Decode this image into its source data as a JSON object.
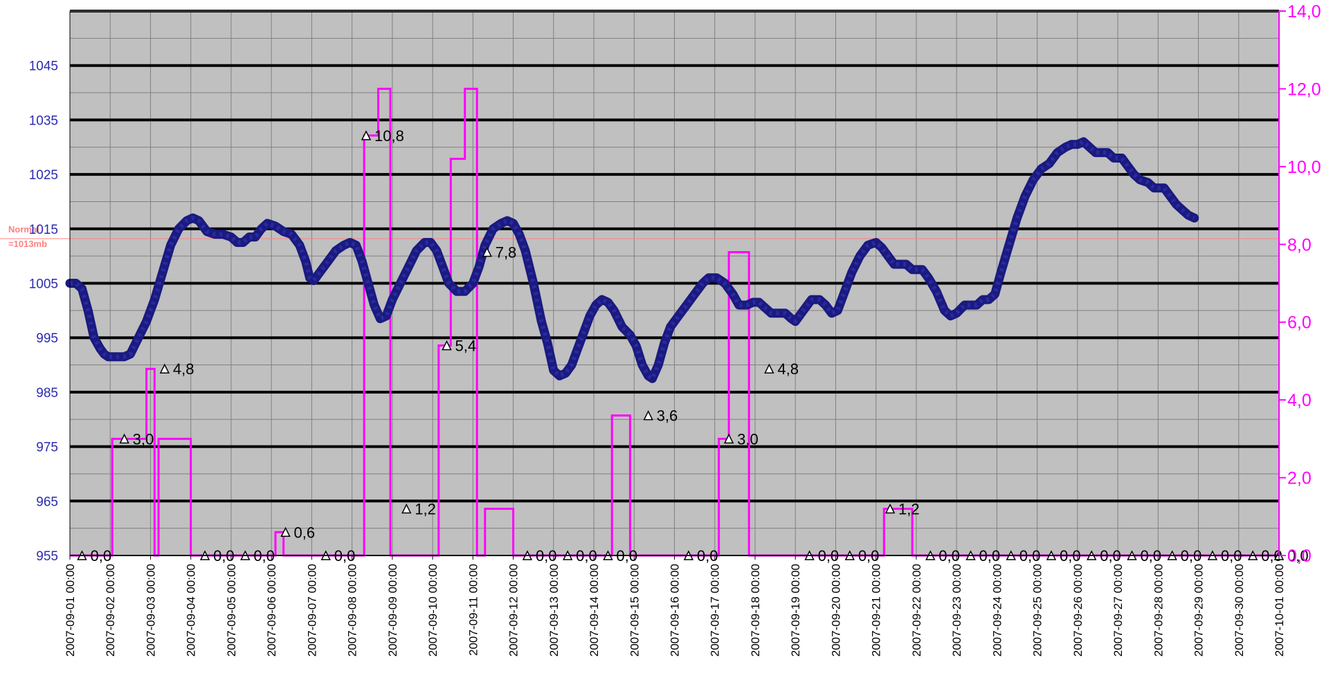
{
  "chart_data": {
    "type": "line",
    "x_start": "2007-09-01",
    "x_categories": [
      "2007-09-01 00:00",
      "2007-09-02 00:00",
      "2007-09-03 00:00",
      "2007-09-04 00:00",
      "2007-09-05 00:00",
      "2007-09-06 00:00",
      "2007-09-07 00:00",
      "2007-09-08 00:00",
      "2007-09-09 00:00",
      "2007-09-10 00:00",
      "2007-09-11 00:00",
      "2007-09-12 00:00",
      "2007-09-13 00:00",
      "2007-09-14 00:00",
      "2007-09-15 00:00",
      "2007-09-16 00:00",
      "2007-09-17 00:00",
      "2007-09-18 00:00",
      "2007-09-19 00:00",
      "2007-09-20 00:00",
      "2007-09-21 00:00",
      "2007-09-22 00:00",
      "2007-09-23 00:00",
      "2007-09-24 00:00",
      "2007-09-25 00:00",
      "2007-09-26 00:00",
      "2007-09-27 00:00",
      "2007-09-28 00:00",
      "2007-09-29 00:00",
      "2007-09-30 00:00",
      "2007-10-01 00:00"
    ],
    "y_left": {
      "min": 955,
      "max": 1055,
      "ticks": [
        "955",
        "965",
        "975",
        "985",
        "995",
        "1005",
        "1015",
        "1025",
        "1035",
        "1045"
      ]
    },
    "y_right": {
      "min": 0,
      "max": 14,
      "ticks": [
        "0,0",
        "2,0",
        "4,0",
        "6,0",
        "8,0",
        "10,0",
        "12,0",
        "14,0"
      ]
    },
    "normal_line": {
      "value": 1013.2,
      "label_line1": "Normal",
      "label_line2": "=1013mb",
      "color": "#ff8080"
    },
    "colors": {
      "pressure": "#1a1a80",
      "rain": "#ff00ff",
      "plot_bg": "#c0c0c0",
      "grid_major": "#000000",
      "grid_minor": "#808080",
      "left_axis_text": "#2b2bb0"
    },
    "grid": true,
    "series": [
      {
        "axis": "left",
        "points": [
          [
            0.0,
            1005
          ],
          [
            0.15,
            1005
          ],
          [
            0.3,
            1004
          ],
          [
            0.45,
            1000
          ],
          [
            0.6,
            995
          ],
          [
            0.75,
            993
          ],
          [
            0.85,
            992
          ],
          [
            0.95,
            991.5
          ],
          [
            1.15,
            991.5
          ],
          [
            1.35,
            991.5
          ],
          [
            1.5,
            992
          ],
          [
            1.7,
            995
          ],
          [
            1.9,
            998
          ],
          [
            2.1,
            1002
          ],
          [
            2.3,
            1007
          ],
          [
            2.5,
            1012
          ],
          [
            2.7,
            1015
          ],
          [
            2.9,
            1016.5
          ],
          [
            3.05,
            1017
          ],
          [
            3.2,
            1016.5
          ],
          [
            3.4,
            1014.5
          ],
          [
            3.6,
            1014
          ],
          [
            3.8,
            1014
          ],
          [
            4.0,
            1013.5
          ],
          [
            4.15,
            1012.5
          ],
          [
            4.3,
            1012.5
          ],
          [
            4.45,
            1013.5
          ],
          [
            4.6,
            1013.5
          ],
          [
            4.75,
            1015
          ],
          [
            4.9,
            1016
          ],
          [
            5.1,
            1015.5
          ],
          [
            5.3,
            1014.5
          ],
          [
            5.5,
            1014
          ],
          [
            5.7,
            1012
          ],
          [
            5.85,
            1009
          ],
          [
            5.95,
            1006
          ],
          [
            6.05,
            1005.5
          ],
          [
            6.2,
            1007
          ],
          [
            6.4,
            1009
          ],
          [
            6.6,
            1011
          ],
          [
            6.8,
            1012
          ],
          [
            6.95,
            1012.5
          ],
          [
            7.1,
            1012
          ],
          [
            7.25,
            1009
          ],
          [
            7.4,
            1005
          ],
          [
            7.55,
            1001
          ],
          [
            7.7,
            998.5
          ],
          [
            7.85,
            999
          ],
          [
            8.0,
            1002
          ],
          [
            8.2,
            1005
          ],
          [
            8.4,
            1008
          ],
          [
            8.6,
            1011
          ],
          [
            8.8,
            1012.5
          ],
          [
            8.95,
            1012.5
          ],
          [
            9.1,
            1011
          ],
          [
            9.25,
            1008
          ],
          [
            9.4,
            1005
          ],
          [
            9.6,
            1003.5
          ],
          [
            9.8,
            1003.5
          ],
          [
            10.0,
            1005
          ],
          [
            10.15,
            1008
          ],
          [
            10.3,
            1012
          ],
          [
            10.5,
            1015
          ],
          [
            10.7,
            1016
          ],
          [
            10.85,
            1016.5
          ],
          [
            11.0,
            1016
          ],
          [
            11.15,
            1014
          ],
          [
            11.3,
            1011
          ],
          [
            11.5,
            1005
          ],
          [
            11.7,
            998
          ],
          [
            11.85,
            994
          ],
          [
            12.0,
            989
          ],
          [
            12.15,
            988
          ],
          [
            12.3,
            988.5
          ],
          [
            12.45,
            990
          ],
          [
            12.6,
            993
          ],
          [
            12.75,
            996
          ],
          [
            12.9,
            999
          ],
          [
            13.05,
            1001
          ],
          [
            13.2,
            1002
          ],
          [
            13.35,
            1001.5
          ],
          [
            13.5,
            1000
          ],
          [
            13.7,
            997
          ],
          [
            13.9,
            995.5
          ],
          [
            14.05,
            993.5
          ],
          [
            14.2,
            990
          ],
          [
            14.35,
            988
          ],
          [
            14.45,
            987.5
          ],
          [
            14.6,
            990
          ],
          [
            14.75,
            994
          ],
          [
            14.9,
            997
          ],
          [
            15.1,
            999
          ],
          [
            15.3,
            1001
          ],
          [
            15.5,
            1003
          ],
          [
            15.7,
            1005
          ],
          [
            15.85,
            1006
          ],
          [
            16.05,
            1006
          ],
          [
            16.25,
            1005
          ],
          [
            16.45,
            1003
          ],
          [
            16.6,
            1001
          ],
          [
            16.8,
            1001
          ],
          [
            16.95,
            1001.5
          ],
          [
            17.1,
            1001.5
          ],
          [
            17.25,
            1000.5
          ],
          [
            17.4,
            999.5
          ],
          [
            17.6,
            999.5
          ],
          [
            17.75,
            999.5
          ],
          [
            17.9,
            998.5
          ],
          [
            18.0,
            998
          ],
          [
            18.2,
            1000
          ],
          [
            18.4,
            1002
          ],
          [
            18.6,
            1002
          ],
          [
            18.75,
            1001
          ],
          [
            18.9,
            999.5
          ],
          [
            19.05,
            1000
          ],
          [
            19.2,
            1003
          ],
          [
            19.4,
            1007
          ],
          [
            19.6,
            1010
          ],
          [
            19.8,
            1012
          ],
          [
            20.0,
            1012.5
          ],
          [
            20.15,
            1011.5
          ],
          [
            20.3,
            1010
          ],
          [
            20.45,
            1008.5
          ],
          [
            20.75,
            1008.5
          ],
          [
            20.9,
            1007.5
          ],
          [
            21.15,
            1007.5
          ],
          [
            21.3,
            1006
          ],
          [
            21.5,
            1003.5
          ],
          [
            21.7,
            1000
          ],
          [
            21.85,
            999
          ],
          [
            22.0,
            999.5
          ],
          [
            22.2,
            1001
          ],
          [
            22.5,
            1001
          ],
          [
            22.65,
            1002
          ],
          [
            22.8,
            1002
          ],
          [
            22.95,
            1003
          ],
          [
            23.1,
            1007
          ],
          [
            23.3,
            1012
          ],
          [
            23.5,
            1017
          ],
          [
            23.7,
            1021
          ],
          [
            23.9,
            1024
          ],
          [
            24.1,
            1026
          ],
          [
            24.3,
            1027
          ],
          [
            24.5,
            1029
          ],
          [
            24.7,
            1030
          ],
          [
            24.85,
            1030.5
          ],
          [
            25.0,
            1030.5
          ],
          [
            25.15,
            1031
          ],
          [
            25.3,
            1030
          ],
          [
            25.45,
            1029
          ],
          [
            25.75,
            1029
          ],
          [
            25.9,
            1028
          ],
          [
            26.1,
            1028
          ],
          [
            26.25,
            1026.5
          ],
          [
            26.4,
            1025
          ],
          [
            26.55,
            1024
          ],
          [
            26.75,
            1023.5
          ],
          [
            26.9,
            1022.5
          ],
          [
            27.15,
            1022.5
          ],
          [
            27.3,
            1021
          ],
          [
            27.45,
            1019.5
          ],
          [
            27.6,
            1018.5
          ],
          [
            27.75,
            1017.5
          ],
          [
            27.9,
            1017
          ]
        ]
      },
      {
        "axis": "right",
        "points": [
          [
            0,
            0
          ],
          [
            1.05,
            0
          ],
          [
            1.05,
            3.0
          ],
          [
            1.9,
            3.0
          ],
          [
            1.9,
            4.8
          ],
          [
            2.1,
            4.8
          ],
          [
            2.1,
            0
          ],
          [
            2.2,
            0
          ],
          [
            2.2,
            3.0
          ],
          [
            3.0,
            3.0
          ],
          [
            3.0,
            0
          ],
          [
            5.1,
            0
          ],
          [
            5.1,
            0.6
          ],
          [
            5.3,
            0.6
          ],
          [
            5.3,
            0
          ],
          [
            7.3,
            0
          ],
          [
            7.3,
            10.8
          ],
          [
            7.65,
            10.8
          ],
          [
            7.65,
            12.0
          ],
          [
            7.95,
            12.0
          ],
          [
            7.95,
            0
          ],
          [
            9.15,
            0
          ],
          [
            9.15,
            5.4
          ],
          [
            9.45,
            5.4
          ],
          [
            9.45,
            10.2
          ],
          [
            9.8,
            10.2
          ],
          [
            9.8,
            12.0
          ],
          [
            10.1,
            12.0
          ],
          [
            10.1,
            0
          ],
          [
            10.3,
            0
          ],
          [
            10.3,
            1.2
          ],
          [
            11.0,
            1.2
          ],
          [
            11.0,
            0
          ],
          [
            13.45,
            0
          ],
          [
            13.45,
            3.6
          ],
          [
            13.9,
            3.6
          ],
          [
            13.9,
            0
          ],
          [
            16.1,
            0
          ],
          [
            16.1,
            3.0
          ],
          [
            16.35,
            3.0
          ],
          [
            16.35,
            7.8
          ],
          [
            16.85,
            7.8
          ],
          [
            16.85,
            0
          ],
          [
            20.2,
            0
          ],
          [
            20.2,
            1.2
          ],
          [
            20.9,
            1.2
          ],
          [
            20.9,
            0
          ],
          [
            30,
            0
          ]
        ]
      }
    ],
    "annotations": [
      {
        "x": 0.3,
        "y": 0.0,
        "text": "0,0"
      },
      {
        "x": 1.35,
        "y": 3.0,
        "text": "3,0"
      },
      {
        "x": 2.35,
        "y": 4.8,
        "text": "4,8"
      },
      {
        "x": 3.35,
        "y": 0.0,
        "text": "0,0"
      },
      {
        "x": 4.35,
        "y": 0.0,
        "text": "0,0"
      },
      {
        "x": 5.35,
        "y": 0.6,
        "text": "0,6"
      },
      {
        "x": 6.35,
        "y": 0.0,
        "text": "0,0"
      },
      {
        "x": 7.35,
        "y": 10.8,
        "text": "10,8"
      },
      {
        "x": 8.35,
        "y": 1.2,
        "text": "1,2"
      },
      {
        "x": 9.35,
        "y": 5.4,
        "text": "5,4"
      },
      {
        "x": 10.35,
        "y": 7.8,
        "text": "7,8"
      },
      {
        "x": 11.35,
        "y": 0.0,
        "text": "0,0"
      },
      {
        "x": 12.35,
        "y": 0.0,
        "text": "0,0"
      },
      {
        "x": 13.35,
        "y": 0.0,
        "text": "0,0"
      },
      {
        "x": 14.35,
        "y": 3.6,
        "text": "3,6"
      },
      {
        "x": 15.35,
        "y": 0.0,
        "text": "0,0"
      },
      {
        "x": 16.35,
        "y": 3.0,
        "text": "3,0"
      },
      {
        "x": 17.35,
        "y": 4.8,
        "text": "4,8"
      },
      {
        "x": 18.35,
        "y": 0.0,
        "text": "0,0"
      },
      {
        "x": 19.35,
        "y": 0.0,
        "text": "0,0"
      },
      {
        "x": 20.35,
        "y": 1.2,
        "text": "1,2"
      },
      {
        "x": 21.35,
        "y": 0.0,
        "text": "0,0"
      },
      {
        "x": 22.35,
        "y": 0.0,
        "text": "0,0"
      },
      {
        "x": 23.35,
        "y": 0.0,
        "text": "0,0"
      },
      {
        "x": 24.35,
        "y": 0.0,
        "text": "0,0"
      },
      {
        "x": 25.35,
        "y": 0.0,
        "text": "0,0"
      },
      {
        "x": 26.35,
        "y": 0.0,
        "text": "0,0"
      },
      {
        "x": 27.35,
        "y": 0.0,
        "text": "0,0"
      },
      {
        "x": 28.35,
        "y": 0.0,
        "text": "0,0"
      },
      {
        "x": 29.35,
        "y": 0.0,
        "text": "0,0"
      },
      {
        "x": 30.0,
        "y": 0.0,
        "text": "0,0"
      }
    ]
  }
}
